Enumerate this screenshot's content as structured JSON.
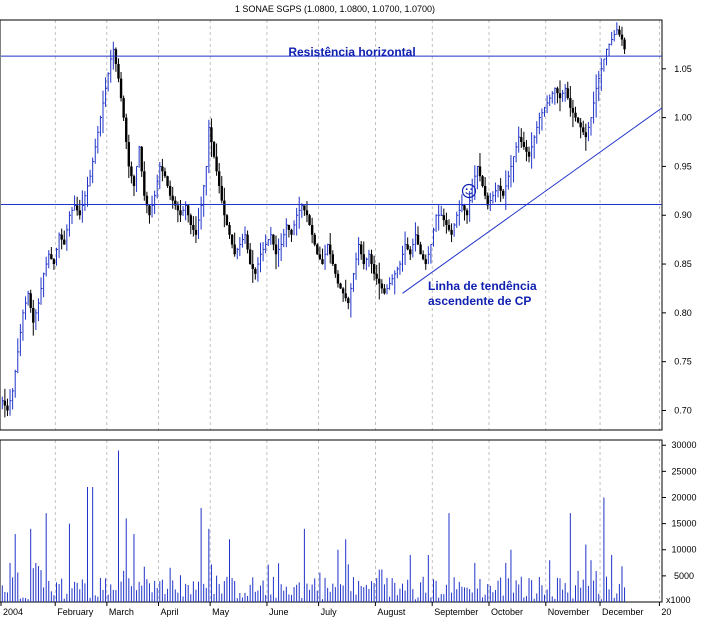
{
  "chart_data": {
    "type": "bar",
    "title": "1 SONAE SGPS (1.0800, 1.0800, 1.0700, 1.0700)",
    "subcharts": [
      {
        "name": "price",
        "type": "ohlc",
        "ylim": [
          0.68,
          1.1
        ],
        "yticks": [
          "1.05",
          "1.00",
          "0.95",
          "0.90",
          "0.85",
          "0.80",
          "0.75",
          "0.70"
        ],
        "ytick_values": [
          1.05,
          1.0,
          0.95,
          0.9,
          0.85,
          0.8,
          0.75,
          0.7
        ],
        "grid": "vertical-dashed",
        "price_path": [
          [
            0,
            0.71
          ],
          [
            2,
            0.7
          ],
          [
            4,
            0.72
          ],
          [
            6,
            0.76
          ],
          [
            8,
            0.8
          ],
          [
            10,
            0.82
          ],
          [
            12,
            0.79
          ],
          [
            14,
            0.81
          ],
          [
            16,
            0.84
          ],
          [
            18,
            0.86
          ],
          [
            20,
            0.85
          ],
          [
            22,
            0.88
          ],
          [
            24,
            0.87
          ],
          [
            26,
            0.9
          ],
          [
            28,
            0.91
          ],
          [
            30,
            0.9
          ],
          [
            32,
            0.92
          ],
          [
            34,
            0.94
          ],
          [
            36,
            0.97
          ],
          [
            38,
            1.0
          ],
          [
            40,
            1.03
          ],
          [
            42,
            1.06
          ],
          [
            43,
            1.07
          ],
          [
            45,
            1.04
          ],
          [
            47,
            1.0
          ],
          [
            49,
            0.95
          ],
          [
            51,
            0.93
          ],
          [
            53,
            0.97
          ],
          [
            55,
            0.92
          ],
          [
            57,
            0.9
          ],
          [
            59,
            0.92
          ],
          [
            61,
            0.95
          ],
          [
            63,
            0.94
          ],
          [
            65,
            0.92
          ],
          [
            67,
            0.91
          ],
          [
            69,
            0.9
          ],
          [
            71,
            0.91
          ],
          [
            73,
            0.89
          ],
          [
            75,
            0.88
          ],
          [
            77,
            0.91
          ],
          [
            79,
            0.95
          ],
          [
            80,
            0.99
          ],
          [
            82,
            0.96
          ],
          [
            84,
            0.93
          ],
          [
            86,
            0.9
          ],
          [
            88,
            0.88
          ],
          [
            90,
            0.86
          ],
          [
            92,
            0.87
          ],
          [
            94,
            0.88
          ],
          [
            96,
            0.85
          ],
          [
            98,
            0.84
          ],
          [
            100,
            0.86
          ],
          [
            102,
            0.87
          ],
          [
            104,
            0.88
          ],
          [
            106,
            0.86
          ],
          [
            108,
            0.87
          ],
          [
            110,
            0.89
          ],
          [
            112,
            0.88
          ],
          [
            114,
            0.9
          ],
          [
            116,
            0.91
          ],
          [
            118,
            0.9
          ],
          [
            120,
            0.88
          ],
          [
            122,
            0.86
          ],
          [
            124,
            0.85
          ],
          [
            126,
            0.87
          ],
          [
            128,
            0.85
          ],
          [
            130,
            0.83
          ],
          [
            132,
            0.82
          ],
          [
            134,
            0.81
          ],
          [
            136,
            0.84
          ],
          [
            138,
            0.87
          ],
          [
            140,
            0.85
          ],
          [
            142,
            0.86
          ],
          [
            144,
            0.84
          ],
          [
            146,
            0.83
          ],
          [
            148,
            0.82
          ],
          [
            150,
            0.83
          ],
          [
            152,
            0.84
          ],
          [
            154,
            0.85
          ],
          [
            156,
            0.87
          ],
          [
            158,
            0.86
          ],
          [
            160,
            0.88
          ],
          [
            162,
            0.86
          ],
          [
            164,
            0.85
          ],
          [
            166,
            0.87
          ],
          [
            168,
            0.9
          ],
          [
            170,
            0.9
          ],
          [
            172,
            0.89
          ],
          [
            174,
            0.88
          ],
          [
            176,
            0.9
          ],
          [
            178,
            0.91
          ],
          [
            180,
            0.9
          ],
          [
            182,
            0.93
          ],
          [
            184,
            0.95
          ],
          [
            186,
            0.93
          ],
          [
            188,
            0.91
          ],
          [
            190,
            0.92
          ],
          [
            192,
            0.93
          ],
          [
            194,
            0.92
          ],
          [
            196,
            0.94
          ],
          [
            198,
            0.96
          ],
          [
            200,
            0.98
          ],
          [
            202,
            0.97
          ],
          [
            204,
            0.96
          ],
          [
            206,
            0.98
          ],
          [
            208,
            1.0
          ],
          [
            210,
            1.01
          ],
          [
            212,
            1.02
          ],
          [
            214,
            1.03
          ],
          [
            216,
            1.02
          ],
          [
            218,
            1.03
          ],
          [
            220,
            1.01
          ],
          [
            222,
            1.0
          ],
          [
            224,
            0.99
          ],
          [
            226,
            0.98
          ],
          [
            228,
            1.0
          ],
          [
            230,
            1.03
          ],
          [
            232,
            1.05
          ],
          [
            234,
            1.07
          ],
          [
            236,
            1.08
          ],
          [
            238,
            1.09
          ],
          [
            240,
            1.08
          ],
          [
            241,
            1.07
          ]
        ],
        "resistance": 1.063,
        "support": 0.911,
        "trendline": {
          "from": [
            155,
            0.82
          ],
          "to": [
            256,
            1.01
          ]
        },
        "annotations": [
          {
            "text": "Resistência horizontal"
          },
          {
            "text": "Linha de tendência"
          },
          {
            "text": "ascendente de CP"
          }
        ]
      },
      {
        "name": "volume",
        "type": "bar",
        "ylim": [
          0,
          31000
        ],
        "yticks": [
          "30000",
          "25000",
          "20000",
          "15000",
          "10000",
          "5000"
        ],
        "ytick_values": [
          30000,
          25000,
          20000,
          15000,
          10000,
          5000
        ],
        "unit_label": "x1000",
        "spikes": [
          [
            5,
            13000
          ],
          [
            11,
            14000
          ],
          [
            17,
            17000
          ],
          [
            26,
            15000
          ],
          [
            33,
            22000
          ],
          [
            35,
            22000
          ],
          [
            45,
            29000
          ],
          [
            48,
            16000
          ],
          [
            51,
            13000
          ],
          [
            77,
            18000
          ],
          [
            80,
            14000
          ],
          [
            88,
            12000
          ],
          [
            117,
            14000
          ],
          [
            130,
            10000
          ],
          [
            133,
            12000
          ],
          [
            165,
            9000
          ],
          [
            173,
            17000
          ],
          [
            197,
            10000
          ],
          [
            212,
            8000
          ],
          [
            220,
            17000
          ],
          [
            226,
            11000
          ],
          [
            233,
            20000
          ],
          [
            236,
            9000
          ]
        ]
      }
    ],
    "x_labels": [
      "2004",
      "February",
      "March",
      "April",
      "May",
      "June",
      "July",
      "August",
      "September",
      "October",
      "November",
      "December",
      "20"
    ],
    "x_label_positions": [
      0,
      21,
      41,
      61,
      81,
      103,
      123,
      145,
      167,
      189,
      211,
      232,
      255
    ],
    "x_count": 256
  },
  "colors": {
    "series": "#1f33c8",
    "lines": "#1f33c8",
    "down": "#000000",
    "axis": "#000000",
    "grid": "#999999",
    "annotation": "#1020b0"
  }
}
